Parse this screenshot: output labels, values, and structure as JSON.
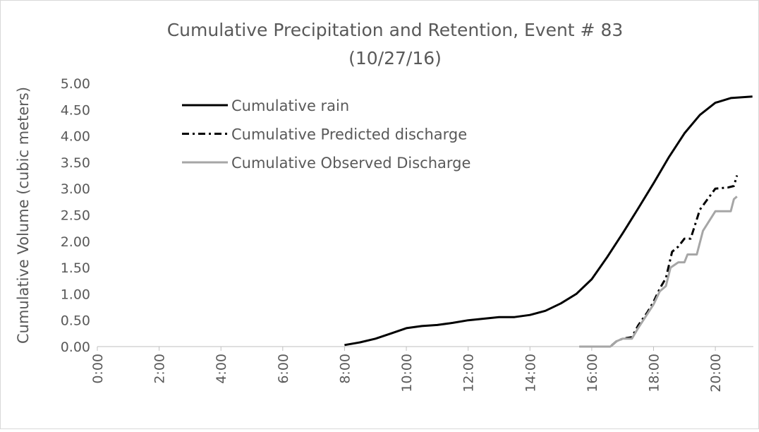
{
  "chart_data": {
    "type": "line",
    "title": "Cumulative Precipitation and Retention, Event # 83",
    "subtitle": "(10/27/16)",
    "y_label": "Cumulative Volume (cubic meters)",
    "xlim": [
      0,
      21.23
    ],
    "xticks": [
      {
        "value": 0,
        "label": "0:00"
      },
      {
        "value": 2,
        "label": "2:00"
      },
      {
        "value": 4,
        "label": "4:00"
      },
      {
        "value": 6,
        "label": "6:00"
      },
      {
        "value": 8,
        "label": "8:00"
      },
      {
        "value": 10,
        "label": "10:00"
      },
      {
        "value": 12,
        "label": "12:00"
      },
      {
        "value": 14,
        "label": "14:00"
      },
      {
        "value": 16,
        "label": "16:00"
      },
      {
        "value": 18,
        "label": "18:00"
      },
      {
        "value": 20,
        "label": "20:00"
      }
    ],
    "ylim": [
      0,
      5
    ],
    "yticks": [
      {
        "value": 0,
        "label": "0.00"
      },
      {
        "value": 0.5,
        "label": "0.50"
      },
      {
        "value": 1,
        "label": "1.00"
      },
      {
        "value": 1.5,
        "label": "1.50"
      },
      {
        "value": 2,
        "label": "2.00"
      },
      {
        "value": 2.5,
        "label": "2.50"
      },
      {
        "value": 3,
        "label": "3.00"
      },
      {
        "value": 3.5,
        "label": "3.50"
      },
      {
        "value": 4,
        "label": "4.00"
      },
      {
        "value": 4.5,
        "label": "4.50"
      },
      {
        "value": 5,
        "label": "5.00"
      }
    ],
    "grid": false,
    "legend": "top-left",
    "series": [
      {
        "name": "Cumulative rain",
        "color": "#000000",
        "dash": "solid",
        "x": [
          8,
          8.5,
          9,
          9.5,
          10,
          10.5,
          11,
          11.5,
          12,
          12.5,
          13,
          13.5,
          14,
          14.5,
          15,
          15.5,
          16,
          16.5,
          17,
          17.5,
          18,
          18.5,
          19,
          19.5,
          20,
          20.5,
          21.2
        ],
        "values": [
          0.03,
          0.08,
          0.15,
          0.25,
          0.35,
          0.39,
          0.41,
          0.45,
          0.5,
          0.53,
          0.56,
          0.56,
          0.6,
          0.68,
          0.82,
          1.0,
          1.28,
          1.7,
          2.15,
          2.62,
          3.1,
          3.6,
          4.05,
          4.4,
          4.63,
          4.72,
          4.75
        ]
      },
      {
        "name": "Cumulative Predicted discharge",
        "color": "#000000",
        "dash": "dash-dot",
        "x": [
          15.6,
          16.6,
          16.8,
          17,
          17.3,
          17.5,
          17.8,
          18,
          18.2,
          18.4,
          18.6,
          18.8,
          19,
          19.2,
          19.5,
          20,
          20.4,
          20.6,
          20.7
        ],
        "values": [
          0,
          0,
          0.1,
          0.15,
          0.18,
          0.4,
          0.65,
          0.85,
          1.1,
          1.3,
          1.8,
          1.9,
          2.05,
          2.05,
          2.6,
          3.0,
          3.02,
          3.05,
          3.25
        ]
      },
      {
        "name": "Cumulative Observed Discharge",
        "color": "#a6a6a6",
        "dash": "solid",
        "x": [
          15.6,
          16.6,
          16.8,
          17,
          17.3,
          17.5,
          18,
          18.2,
          18.4,
          18.55,
          18.8,
          19,
          19.1,
          19.4,
          19.6,
          20,
          20.5,
          20.6,
          20.7
        ],
        "values": [
          0,
          0,
          0.1,
          0.15,
          0.15,
          0.35,
          0.8,
          1.05,
          1.15,
          1.5,
          1.6,
          1.6,
          1.75,
          1.75,
          2.2,
          2.57,
          2.57,
          2.8,
          2.85
        ]
      }
    ]
  }
}
